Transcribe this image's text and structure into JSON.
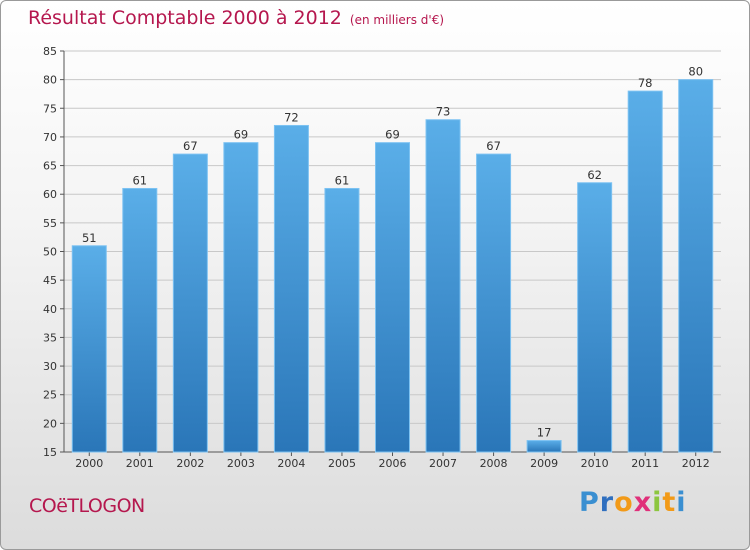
{
  "title": "Résultat Comptable 2000 à 2012",
  "unit": "(en milliers d'€)",
  "commune": "COëTLOGON",
  "brand": {
    "letters": [
      "P",
      "r",
      "o",
      "x",
      "i",
      "t",
      "i"
    ],
    "colors": [
      "#3a8fd1",
      "#2f6fbf",
      "#f29a18",
      "#e0307a",
      "#8cc63f",
      "#f29a18",
      "#3a8fd1"
    ]
  },
  "colors": {
    "bar_top": "#5aaee8",
    "bar_bottom": "#2a76b8",
    "accent": "#b5174e"
  },
  "chart_data": {
    "type": "bar",
    "title": "Résultat Comptable 2000 à 2012",
    "subtitle": "(en milliers d'€)",
    "xlabel": "",
    "ylabel": "",
    "categories": [
      "2000",
      "2001",
      "2002",
      "2003",
      "2004",
      "2005",
      "2006",
      "2007",
      "2008",
      "2009",
      "2010",
      "2011",
      "2012"
    ],
    "values": [
      51,
      61,
      67,
      69,
      72,
      61,
      69,
      73,
      67,
      17,
      62,
      78,
      80
    ],
    "ylim": [
      15,
      85
    ],
    "yticks": [
      15,
      20,
      25,
      30,
      35,
      40,
      45,
      50,
      55,
      60,
      65,
      70,
      75,
      80,
      85
    ],
    "grid": true
  }
}
